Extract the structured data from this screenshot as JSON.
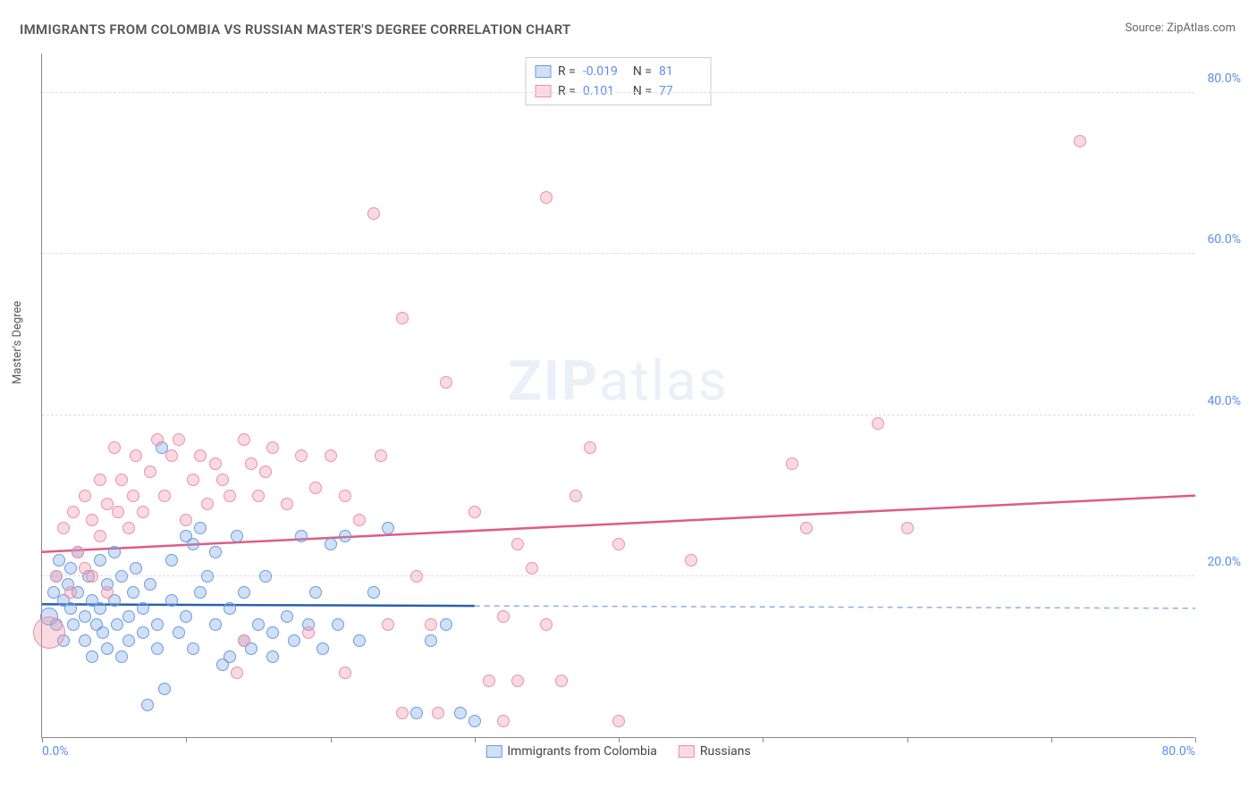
{
  "title": "IMMIGRANTS FROM COLOMBIA VS RUSSIAN MASTER'S DEGREE CORRELATION CHART",
  "source": "Source: ZipAtlas.com",
  "watermark_bold": "ZIP",
  "watermark_rest": "atlas",
  "chart": {
    "type": "scatter",
    "ylabel": "Master's Degree",
    "xlim": [
      0,
      80
    ],
    "ylim": [
      0,
      85
    ],
    "xtick_positions": [
      0,
      10,
      20,
      30,
      40,
      50,
      60,
      70,
      80
    ],
    "xtick_labels_shown": {
      "0": "0.0%",
      "80": "80.0%"
    },
    "ytick_positions": [
      20,
      40,
      60,
      80
    ],
    "ytick_labels": [
      "20.0%",
      "40.0%",
      "60.0%",
      "80.0%"
    ],
    "grid_color": "#dddddd",
    "background_color": "#ffffff",
    "axis_color": "#888888",
    "tick_label_color": "#5b8def",
    "series": [
      {
        "name": "Immigrants from Colombia",
        "fill": "rgba(122,167,229,0.35)",
        "stroke": "#6a9be0",
        "trend_color": "#2b5fb5",
        "trend_dash_color": "#8fb0e0",
        "R": "-0.019",
        "N": "81",
        "marker_r_default": 7,
        "trend": {
          "x1": 0,
          "y1": 16.5,
          "x2_solid": 30,
          "y2_solid": 16.3,
          "x2": 80,
          "y2": 16.0
        },
        "points": [
          {
            "x": 0.5,
            "y": 15,
            "r": 10
          },
          {
            "x": 0.8,
            "y": 18
          },
          {
            "x": 1,
            "y": 20
          },
          {
            "x": 1,
            "y": 14
          },
          {
            "x": 1.2,
            "y": 22
          },
          {
            "x": 1.5,
            "y": 17
          },
          {
            "x": 1.5,
            "y": 12
          },
          {
            "x": 1.8,
            "y": 19
          },
          {
            "x": 2,
            "y": 16
          },
          {
            "x": 2,
            "y": 21
          },
          {
            "x": 2.2,
            "y": 14
          },
          {
            "x": 2.5,
            "y": 18
          },
          {
            "x": 2.5,
            "y": 23
          },
          {
            "x": 3,
            "y": 15
          },
          {
            "x": 3,
            "y": 12
          },
          {
            "x": 3.2,
            "y": 20
          },
          {
            "x": 3.5,
            "y": 17
          },
          {
            "x": 3.5,
            "y": 10
          },
          {
            "x": 3.8,
            "y": 14
          },
          {
            "x": 4,
            "y": 22
          },
          {
            "x": 4,
            "y": 16
          },
          {
            "x": 4.2,
            "y": 13
          },
          {
            "x": 4.5,
            "y": 19
          },
          {
            "x": 4.5,
            "y": 11
          },
          {
            "x": 5,
            "y": 17
          },
          {
            "x": 5,
            "y": 23
          },
          {
            "x": 5.2,
            "y": 14
          },
          {
            "x": 5.5,
            "y": 20
          },
          {
            "x": 5.5,
            "y": 10
          },
          {
            "x": 6,
            "y": 15
          },
          {
            "x": 6,
            "y": 12
          },
          {
            "x": 6.3,
            "y": 18
          },
          {
            "x": 6.5,
            "y": 21
          },
          {
            "x": 7,
            "y": 13
          },
          {
            "x": 7,
            "y": 16
          },
          {
            "x": 7.3,
            "y": 4
          },
          {
            "x": 7.5,
            "y": 19
          },
          {
            "x": 8,
            "y": 14
          },
          {
            "x": 8,
            "y": 11
          },
          {
            "x": 8.3,
            "y": 36
          },
          {
            "x": 8.5,
            "y": 6
          },
          {
            "x": 9,
            "y": 17
          },
          {
            "x": 9,
            "y": 22
          },
          {
            "x": 9.5,
            "y": 13
          },
          {
            "x": 10,
            "y": 15
          },
          {
            "x": 10,
            "y": 25
          },
          {
            "x": 10.5,
            "y": 24
          },
          {
            "x": 10.5,
            "y": 11
          },
          {
            "x": 11,
            "y": 18
          },
          {
            "x": 11,
            "y": 26
          },
          {
            "x": 11.5,
            "y": 20
          },
          {
            "x": 12,
            "y": 14
          },
          {
            "x": 12,
            "y": 23
          },
          {
            "x": 12.5,
            "y": 9
          },
          {
            "x": 13,
            "y": 16
          },
          {
            "x": 13,
            "y": 10
          },
          {
            "x": 13.5,
            "y": 25
          },
          {
            "x": 14,
            "y": 12
          },
          {
            "x": 14,
            "y": 18
          },
          {
            "x": 14.5,
            "y": 11
          },
          {
            "x": 15,
            "y": 14
          },
          {
            "x": 15.5,
            "y": 20
          },
          {
            "x": 16,
            "y": 13
          },
          {
            "x": 16,
            "y": 10
          },
          {
            "x": 17,
            "y": 15
          },
          {
            "x": 17.5,
            "y": 12
          },
          {
            "x": 18,
            "y": 25
          },
          {
            "x": 18.5,
            "y": 14
          },
          {
            "x": 19,
            "y": 18
          },
          {
            "x": 19.5,
            "y": 11
          },
          {
            "x": 20,
            "y": 24
          },
          {
            "x": 20.5,
            "y": 14
          },
          {
            "x": 21,
            "y": 25
          },
          {
            "x": 22,
            "y": 12
          },
          {
            "x": 23,
            "y": 18
          },
          {
            "x": 24,
            "y": 26
          },
          {
            "x": 26,
            "y": 3
          },
          {
            "x": 27,
            "y": 12
          },
          {
            "x": 28,
            "y": 14
          },
          {
            "x": 29,
            "y": 3
          },
          {
            "x": 30,
            "y": 2
          }
        ]
      },
      {
        "name": "Russians",
        "fill": "rgba(240,150,170,0.35)",
        "stroke": "#e990a8",
        "trend_color": "#e05b85",
        "R": "0.101",
        "N": "77",
        "marker_r_default": 7,
        "trend": {
          "x1": 0,
          "y1": 23,
          "x2_solid": 80,
          "y2_solid": 30,
          "x2": 80,
          "y2": 30
        },
        "points": [
          {
            "x": 0.5,
            "y": 13,
            "r": 18
          },
          {
            "x": 1,
            "y": 20
          },
          {
            "x": 1.5,
            "y": 26
          },
          {
            "x": 2,
            "y": 18
          },
          {
            "x": 2.2,
            "y": 28
          },
          {
            "x": 2.5,
            "y": 23
          },
          {
            "x": 3,
            "y": 21
          },
          {
            "x": 3,
            "y": 30
          },
          {
            "x": 3.5,
            "y": 27
          },
          {
            "x": 3.5,
            "y": 20
          },
          {
            "x": 4,
            "y": 32
          },
          {
            "x": 4,
            "y": 25
          },
          {
            "x": 4.5,
            "y": 29
          },
          {
            "x": 4.5,
            "y": 18
          },
          {
            "x": 5,
            "y": 36
          },
          {
            "x": 5.3,
            "y": 28
          },
          {
            "x": 5.5,
            "y": 32
          },
          {
            "x": 6,
            "y": 26
          },
          {
            "x": 6.3,
            "y": 30
          },
          {
            "x": 6.5,
            "y": 35
          },
          {
            "x": 7,
            "y": 28
          },
          {
            "x": 7.5,
            "y": 33
          },
          {
            "x": 8,
            "y": 37
          },
          {
            "x": 8.5,
            "y": 30
          },
          {
            "x": 9,
            "y": 35
          },
          {
            "x": 9.5,
            "y": 37
          },
          {
            "x": 10,
            "y": 27
          },
          {
            "x": 10.5,
            "y": 32
          },
          {
            "x": 11,
            "y": 35
          },
          {
            "x": 11.5,
            "y": 29
          },
          {
            "x": 12,
            "y": 34
          },
          {
            "x": 12.5,
            "y": 32
          },
          {
            "x": 13,
            "y": 30
          },
          {
            "x": 13.5,
            "y": 8
          },
          {
            "x": 14,
            "y": 37
          },
          {
            "x": 14,
            "y": 12
          },
          {
            "x": 14.5,
            "y": 34
          },
          {
            "x": 15,
            "y": 30
          },
          {
            "x": 15.5,
            "y": 33
          },
          {
            "x": 16,
            "y": 36
          },
          {
            "x": 17,
            "y": 29
          },
          {
            "x": 18,
            "y": 35
          },
          {
            "x": 18.5,
            "y": 13
          },
          {
            "x": 19,
            "y": 31
          },
          {
            "x": 20,
            "y": 35
          },
          {
            "x": 21,
            "y": 8
          },
          {
            "x": 21,
            "y": 30
          },
          {
            "x": 22,
            "y": 27
          },
          {
            "x": 23,
            "y": 65
          },
          {
            "x": 23.5,
            "y": 35
          },
          {
            "x": 24,
            "y": 14
          },
          {
            "x": 25,
            "y": 3
          },
          {
            "x": 25,
            "y": 52
          },
          {
            "x": 26,
            "y": 20
          },
          {
            "x": 27,
            "y": 14
          },
          {
            "x": 27.5,
            "y": 3
          },
          {
            "x": 28,
            "y": 44
          },
          {
            "x": 30,
            "y": 28
          },
          {
            "x": 31,
            "y": 7
          },
          {
            "x": 32,
            "y": 15
          },
          {
            "x": 32,
            "y": 2
          },
          {
            "x": 33,
            "y": 24
          },
          {
            "x": 33,
            "y": 7
          },
          {
            "x": 34,
            "y": 21
          },
          {
            "x": 35,
            "y": 67
          },
          {
            "x": 35,
            "y": 14
          },
          {
            "x": 36,
            "y": 7
          },
          {
            "x": 37,
            "y": 30
          },
          {
            "x": 38,
            "y": 36
          },
          {
            "x": 40,
            "y": 2
          },
          {
            "x": 40,
            "y": 24
          },
          {
            "x": 45,
            "y": 22
          },
          {
            "x": 52,
            "y": 34
          },
          {
            "x": 53,
            "y": 26
          },
          {
            "x": 58,
            "y": 39
          },
          {
            "x": 60,
            "y": 26
          },
          {
            "x": 72,
            "y": 74
          }
        ]
      }
    ]
  }
}
